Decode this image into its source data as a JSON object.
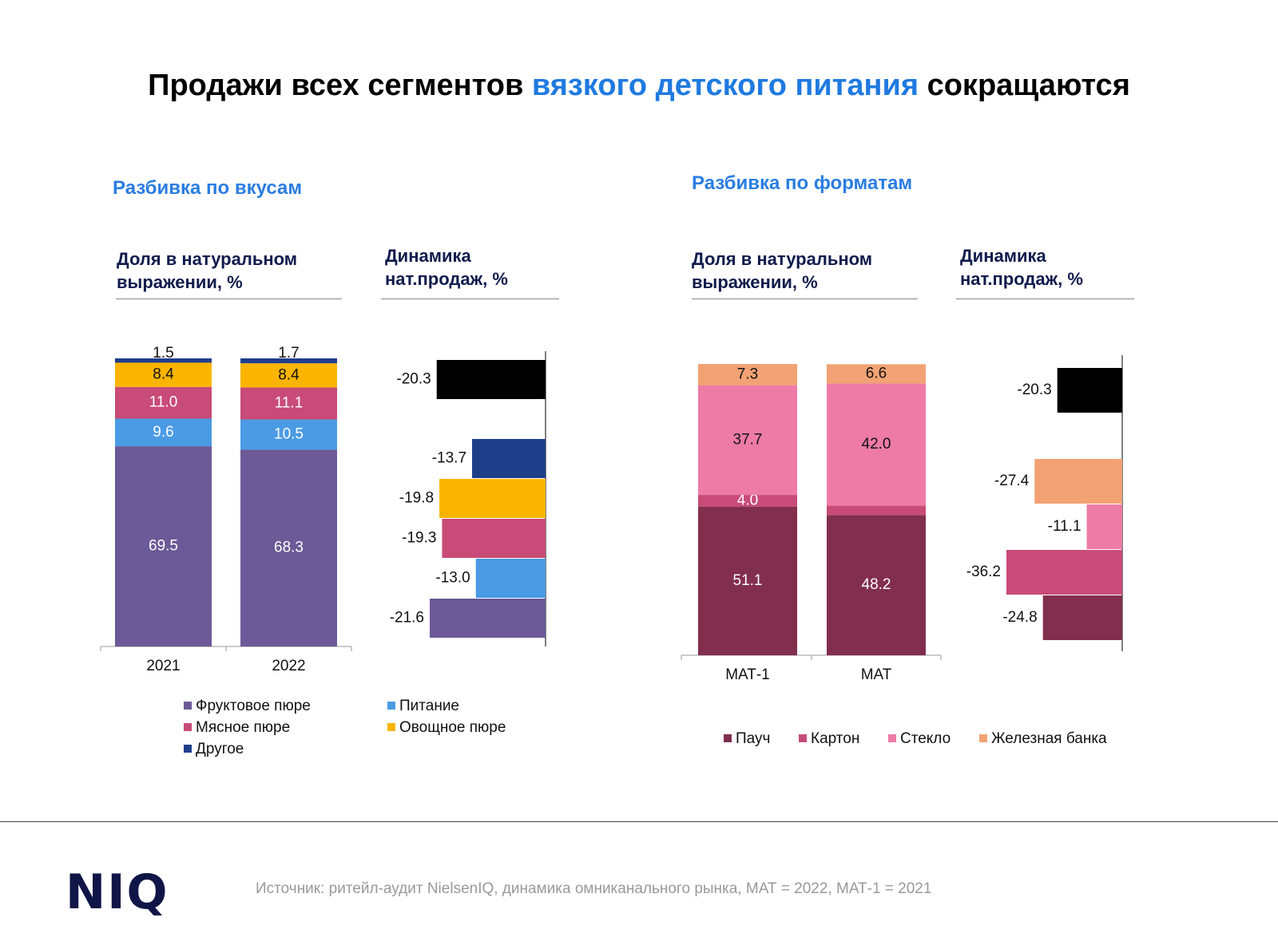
{
  "page": {
    "title_part1": "Продажи всех сегментов ",
    "title_accent": "вязкого детского питания",
    "title_part2": " сокращаются",
    "left_section": "Разбивка по вкусам",
    "right_section": "Разбивка по форматам",
    "share_header": "Доля в натуральном выражении, %",
    "dyn_header": "Динамика нат.продаж, %",
    "source": "Источник: ритейл-аудит NielsenIQ, динамика омниканального рынка, МАТ = 2022, МАТ-1 = 2021",
    "logo": "NIQ"
  },
  "chart_data": [
    {
      "type": "bar",
      "stacked": true,
      "categories": [
        "2021",
        "2022"
      ],
      "series": [
        {
          "name": "Фруктовое пюре",
          "color": "#6b5a97",
          "values": [
            69.5,
            68.3
          ]
        },
        {
          "name": "Питание",
          "color": "#4a9be4",
          "values": [
            9.6,
            10.5
          ]
        },
        {
          "name": "Мясное пюре",
          "color": "#c84b78",
          "values": [
            11.0,
            11.1
          ]
        },
        {
          "name": "Овощное пюре",
          "color": "#fbb500",
          "values": [
            8.4,
            8.4
          ]
        },
        {
          "name": "Другое",
          "color": "#1f3e8a",
          "values": [
            1.5,
            1.7
          ]
        }
      ],
      "legend_order": [
        "Фруктовое пюре",
        "Питание",
        "Мясное пюре",
        "Овощное пюре",
        "Другое"
      ]
    },
    {
      "type": "bar",
      "orientation": "horizontal",
      "values": [
        -20.3,
        -13.7,
        -19.8,
        -19.3,
        -13.0,
        -21.6
      ],
      "colors": [
        "#000000",
        "#1f3e8a",
        "#fbb500",
        "#c84b78",
        "#4a9be4",
        "#6b5a97"
      ]
    },
    {
      "type": "bar",
      "stacked": true,
      "categories": [
        "МАТ-1",
        "МАТ"
      ],
      "series": [
        {
          "name": "Пауч",
          "color": "#822f4d",
          "values": [
            51.1,
            48.2
          ]
        },
        {
          "name": "Картон",
          "color": "#c84b78",
          "values": [
            4.0,
            3.2
          ]
        },
        {
          "name": "Стекло",
          "color": "#ee7ba6",
          "values": [
            37.7,
            42.0
          ]
        },
        {
          "name": "Железная банка",
          "color": "#f2a274",
          "values": [
            7.3,
            6.6
          ]
        }
      ],
      "legend_order": [
        "Пауч",
        "Картон",
        "Стекло",
        "Железная банка"
      ]
    },
    {
      "type": "bar",
      "orientation": "horizontal",
      "values": [
        -20.3,
        -27.4,
        -11.1,
        -36.2,
        -24.8
      ],
      "colors": [
        "#000000",
        "#f2a274",
        "#ee7ba6",
        "#c84b78",
        "#822f4d"
      ]
    }
  ]
}
